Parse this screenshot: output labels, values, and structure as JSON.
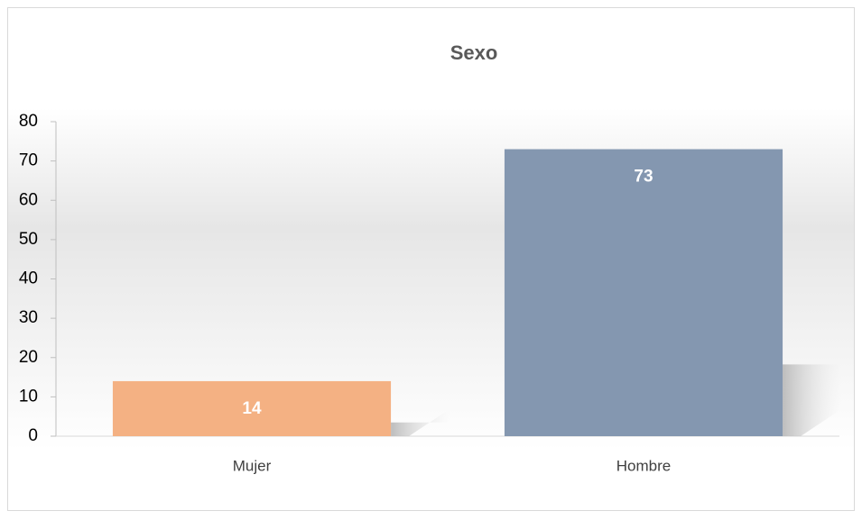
{
  "chart_data": {
    "type": "bar",
    "title": "Sexo",
    "categories": [
      "Mujer",
      "Hombre"
    ],
    "values": [
      14,
      73
    ],
    "colors": [
      "#f4b183",
      "#8497b0"
    ],
    "ylim": [
      0,
      80
    ],
    "yticks": [
      0,
      10,
      20,
      30,
      40,
      50,
      60,
      70,
      80
    ],
    "grid": false
  }
}
